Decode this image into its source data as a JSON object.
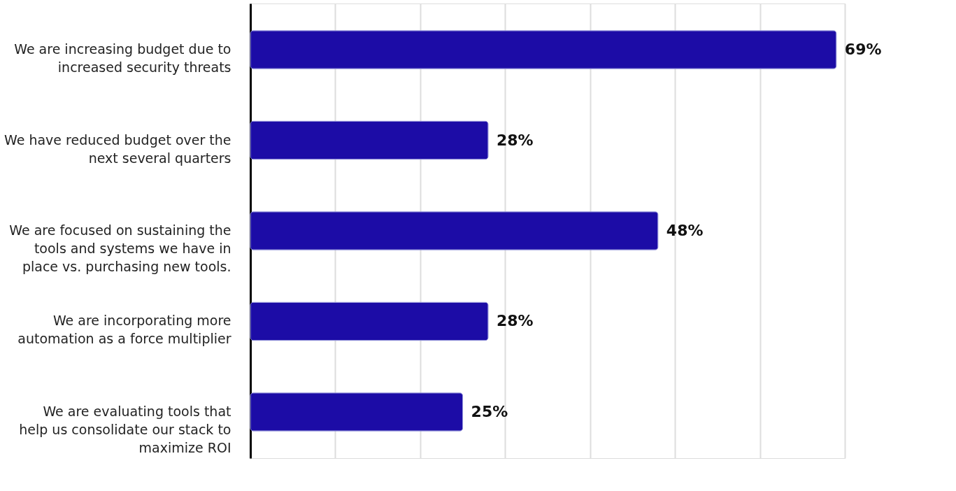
{
  "chart_data": {
    "type": "bar",
    "orientation": "horizontal",
    "categories": [
      "We are increasing budget due to increased security threats",
      "We have reduced budget over the next several quarters",
      "We are focused on sustaining the tools and systems we have in place vs. purchasing new tools.",
      "We are incorporating more automation as a force multiplier",
      "We are evaluating tools that help us consolidate our stack to maximize ROI"
    ],
    "values": [
      69,
      28,
      48,
      28,
      25
    ],
    "value_labels": [
      "69%",
      "28%",
      "48%",
      "28%",
      "25%"
    ],
    "color": "#1c0ca6",
    "xlim": [
      0,
      70
    ],
    "xticks": [
      {
        "value": 0,
        "label": null
      },
      {
        "value": 10,
        "label": null
      },
      {
        "value": 20,
        "label": null
      },
      {
        "value": 30,
        "label": null
      },
      {
        "value": 40,
        "label": null
      },
      {
        "value": 50,
        "label": null
      },
      {
        "value": 60,
        "label": null
      },
      {
        "value": 70,
        "label": null
      }
    ],
    "grid": "x"
  }
}
